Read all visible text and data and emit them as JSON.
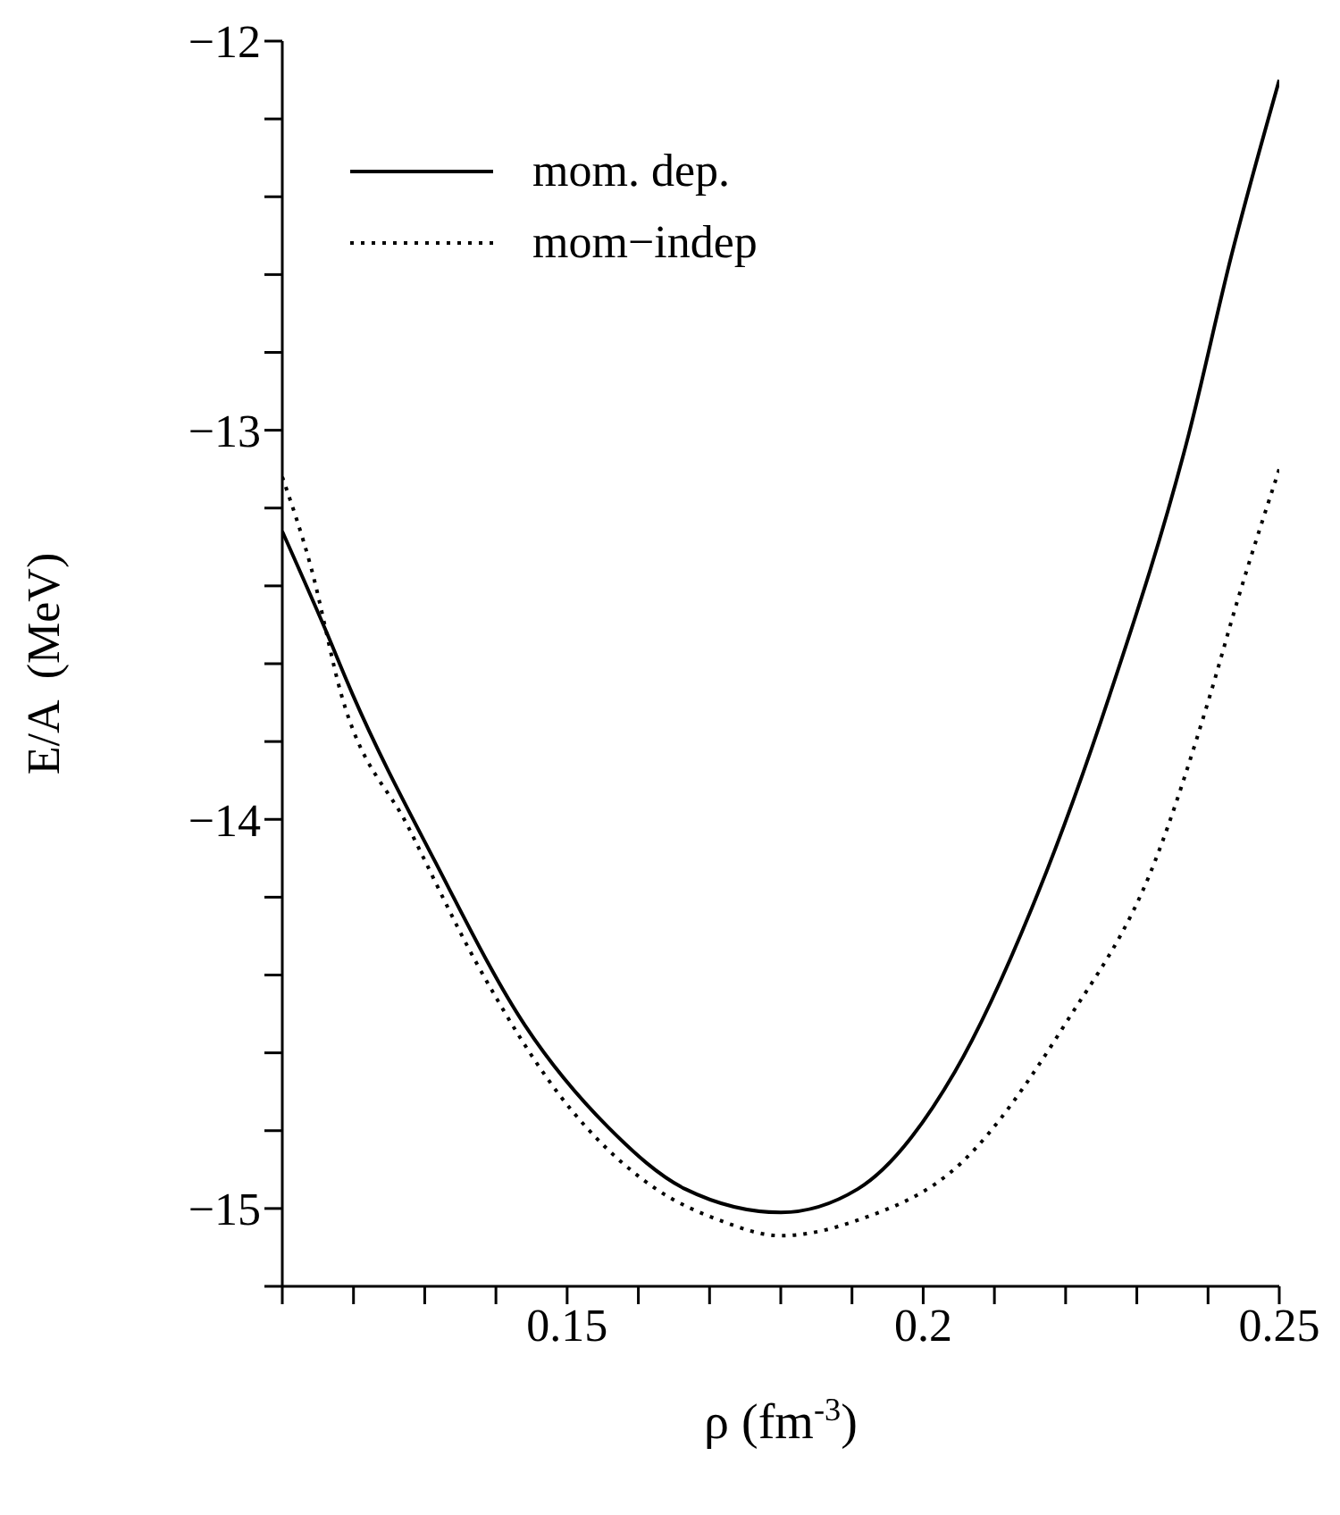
{
  "chart_data": {
    "type": "line",
    "xlabel": "ρ  (fm$^{-3}$)",
    "ylabel": "E/A  (MeV)",
    "xlim": [
      0.11,
      0.25
    ],
    "ylim": [
      -15.2,
      -12
    ],
    "xticks": [
      {
        "value": 0.11,
        "label": null
      },
      {
        "value": 0.12,
        "label": null
      },
      {
        "value": 0.13,
        "label": null
      },
      {
        "value": 0.14,
        "label": null
      },
      0.15,
      {
        "value": 0.16,
        "label": null
      },
      {
        "value": 0.17,
        "label": null
      },
      {
        "value": 0.18,
        "label": null
      },
      {
        "value": 0.19,
        "label": null
      },
      0.2,
      {
        "value": 0.21,
        "label": null
      },
      {
        "value": 0.22,
        "label": null
      },
      {
        "value": 0.23,
        "label": null
      },
      {
        "value": 0.24,
        "label": null
      },
      0.25
    ],
    "yticks": [
      {
        "value": -15.2,
        "label": null
      },
      -15,
      {
        "value": -14.8,
        "label": null
      },
      {
        "value": -14.6,
        "label": null
      },
      {
        "value": -14.4,
        "label": null
      },
      {
        "value": -14.2,
        "label": null
      },
      -14,
      {
        "value": -13.8,
        "label": null
      },
      {
        "value": -13.6,
        "label": null
      },
      {
        "value": -13.4,
        "label": null
      },
      {
        "value": -13.2,
        "label": null
      },
      -13,
      {
        "value": -12.8,
        "label": null
      },
      {
        "value": -12.6,
        "label": null
      },
      {
        "value": -12.4,
        "label": null
      },
      {
        "value": -12.2,
        "label": null
      },
      -12
    ],
    "grid": false,
    "legend": "top left",
    "marker": "none",
    "series": [
      {
        "name": "mom. dep.",
        "color": "#000000",
        "line_style": "solid",
        "x": [
          0.11,
          0.116,
          0.1199,
          0.1315,
          0.1441,
          0.1557,
          0.1666,
          0.18,
          0.1908,
          0.2044,
          0.2161,
          0.2262,
          0.2373,
          0.2433,
          0.25
        ],
        "values": [
          -13.26,
          -13.51,
          -13.68,
          -14.11,
          -14.53,
          -14.79,
          -14.95,
          -15.01,
          -14.95,
          -14.65,
          -14.19,
          -13.68,
          -13.01,
          -12.55,
          -12.1
        ]
      },
      {
        "name": "mom−indep",
        "color": "#000000",
        "line_style": "dotted",
        "x": [
          0.11,
          0.114,
          0.1183,
          0.1277,
          0.1373,
          0.149,
          0.1625,
          0.1714,
          0.18,
          0.1908,
          0.2055,
          0.2198,
          0.2325,
          0.2403,
          0.2441,
          0.25
        ],
        "values": [
          -13.12,
          -13.35,
          -13.68,
          -14.02,
          -14.37,
          -14.71,
          -14.95,
          -15.03,
          -15.07,
          -15.03,
          -14.88,
          -14.53,
          -14.11,
          -13.68,
          -13.44,
          -13.1
        ]
      }
    ]
  }
}
